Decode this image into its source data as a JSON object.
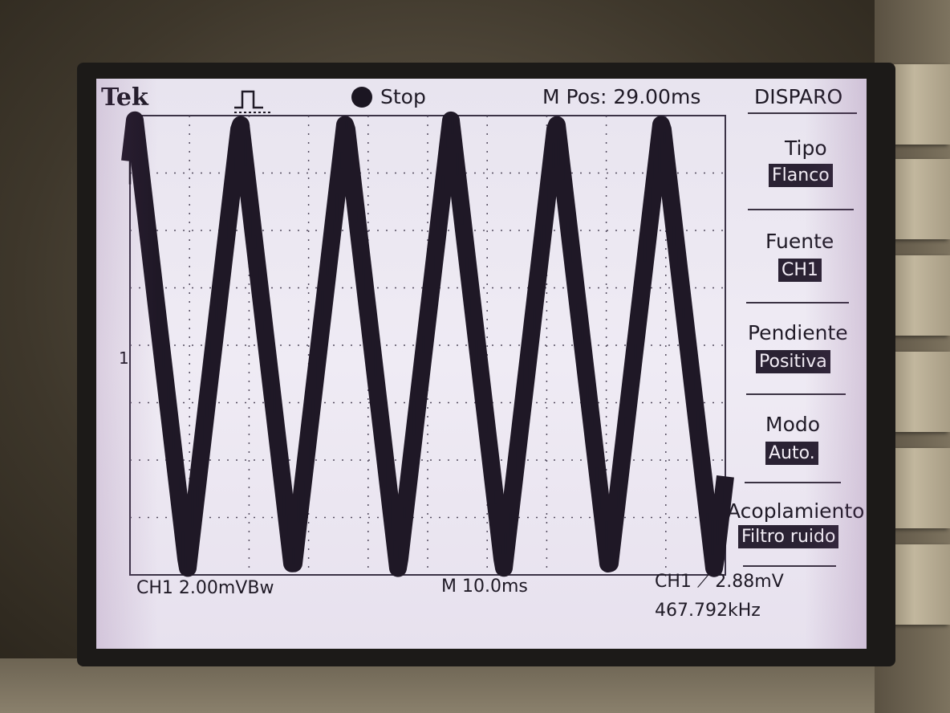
{
  "header": {
    "brand": "Tek",
    "run_state": "Stop",
    "menu_pos": "M Pos: 29.00ms"
  },
  "menu": {
    "title": "DISPARO",
    "items": [
      {
        "label": "Tipo",
        "value": "Flanco"
      },
      {
        "label": "Fuente",
        "value": "CH1"
      },
      {
        "label": "Pendiente",
        "value": "Positiva"
      },
      {
        "label": "Modo",
        "value": "Auto."
      },
      {
        "label": "Acoplamiento",
        "value": "Filtro ruido"
      }
    ]
  },
  "footer": {
    "ch1_scale": "CH1  2.00mVBw",
    "timebase": "M 10.0ms",
    "trigger": "CH1  ⟋  2.88mV",
    "frequency": "467.792kHz"
  },
  "graticule": {
    "ch1_marker": "1"
  },
  "waveform": {
    "shape": "triangle",
    "peaks_visible": 6,
    "trace_color": "#1f1826"
  },
  "colors": {
    "screen_bg": "#ece8f2",
    "trace": "#1f1826",
    "text": "#1f1a26"
  }
}
